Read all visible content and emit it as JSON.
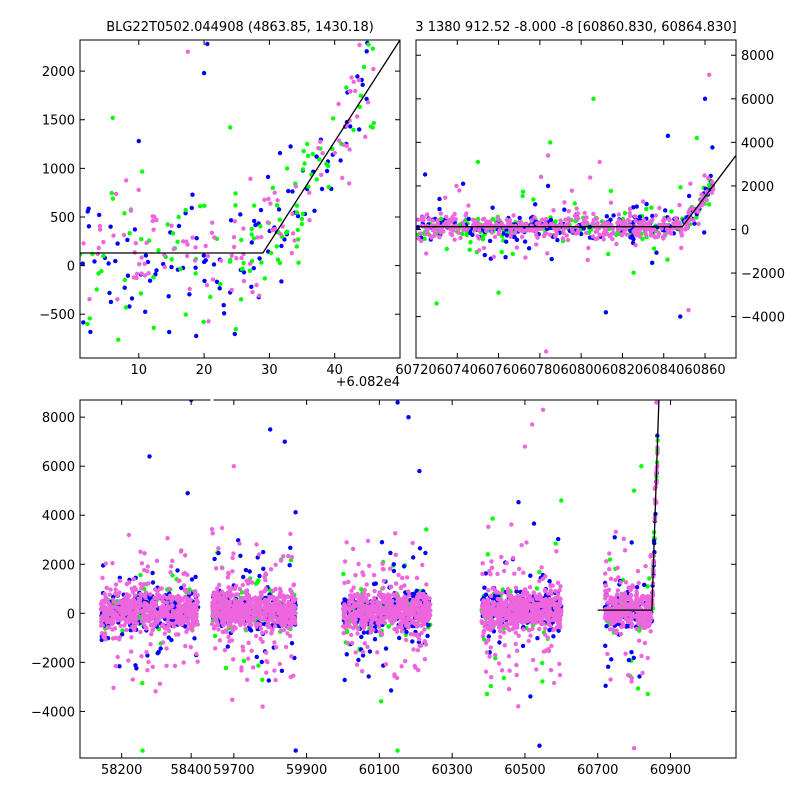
{
  "figure": {
    "title_left": "BLG22T0502.044908 (4863.85, 1430.18)",
    "title_right": "3 1380 912.52 -8.000 -8 [60860.830, 60864.830]",
    "offset_label": "+6.082e4"
  },
  "colors": {
    "series_blue": "#0000ff",
    "series_green": "#00ff00",
    "series_magenta": "#ee66dd",
    "model_line": "#000000"
  },
  "chart_data": [
    {
      "type": "scatter",
      "panel": "top-left",
      "title": "BLG22T0502.044908 (4863.85, 1430.18)",
      "x_offset": 60820,
      "xlim": [
        1,
        50
      ],
      "ylim": [
        -950,
        2320
      ],
      "xticks": [
        10,
        20,
        30,
        40
      ],
      "xtick_labels": [
        "10",
        "20",
        "30",
        "40"
      ],
      "yticks": [
        -500,
        0,
        500,
        1000,
        1500,
        2000
      ],
      "ytick_labels": [
        "−500",
        "0",
        "500",
        "1000",
        "1500",
        "2000"
      ],
      "grid": false,
      "model": {
        "x": [
          1,
          29,
          50
        ],
        "y": [
          130,
          130,
          2320
        ]
      },
      "series_color_keys": [
        "series_blue",
        "series_green",
        "series_magenta"
      ]
    },
    {
      "type": "scatter",
      "panel": "top-right",
      "title": "3 1380 912.52 -8.000 -8 [60860.830, 60864.830]",
      "xlim": [
        60720,
        60875
      ],
      "ylim": [
        -5900,
        8700
      ],
      "xticks": [
        60720,
        60740,
        60760,
        60780,
        60800,
        60820,
        60840,
        60860
      ],
      "xtick_labels": [
        "60720",
        "60740",
        "60760",
        "60780",
        "60800",
        "60820",
        "60840",
        "60860"
      ],
      "yticks": [
        -4000,
        -2000,
        0,
        2000,
        4000,
        6000,
        8000
      ],
      "ytick_labels": [
        "−4000",
        "−2000",
        "0",
        "2000",
        "4000",
        "6000",
        "8000"
      ],
      "yaxis_side": "right",
      "grid": false,
      "model": {
        "x": [
          60720,
          60849,
          60875
        ],
        "y": [
          130,
          130,
          3400
        ]
      },
      "series_color_keys": [
        "series_blue",
        "series_green",
        "series_magenta"
      ]
    },
    {
      "type": "scatter",
      "panel": "bottom",
      "title": "",
      "xlim": [
        58080,
        61080
      ],
      "ylim": [
        -5900,
        8700
      ],
      "xticks": [
        58200,
        58400,
        59700,
        59900,
        60100,
        60300,
        60500,
        60700,
        60900
      ],
      "xtick_labels": [
        "58200",
        "58400",
        "59700",
        "59900",
        "60100",
        "60300",
        "60500",
        "60700",
        "60900"
      ],
      "yticks": [
        -4000,
        -2000,
        0,
        2000,
        4000,
        6000,
        8000
      ],
      "ytick_labels": [
        "−4000",
        "−2000",
        "0",
        "2000",
        "4000",
        "6000",
        "8000"
      ],
      "broken_axis": true,
      "grid": false,
      "model": {
        "x": [
          60700,
          60849,
          60868
        ],
        "y": [
          130,
          130,
          8700
        ]
      },
      "series_color_keys": [
        "series_blue",
        "series_green",
        "series_magenta"
      ]
    }
  ]
}
